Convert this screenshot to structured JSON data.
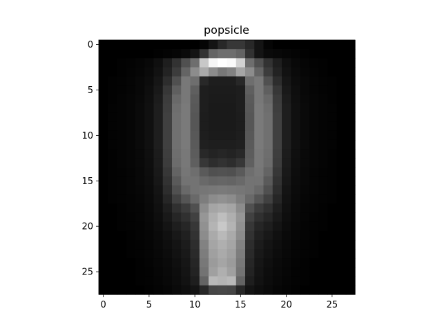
{
  "chart_data": {
    "type": "heatmap",
    "title": "popsicle",
    "xlabel": "",
    "ylabel": "",
    "colormap": "gray",
    "value_range": [
      0,
      255
    ],
    "grid": false,
    "rows": 28,
    "cols": 28,
    "xlim": [
      -0.5,
      27.5
    ],
    "ylim": [
      27.5,
      -0.5
    ],
    "x_ticks": [
      0,
      5,
      10,
      15,
      20,
      25
    ],
    "y_ticks": [
      0,
      5,
      10,
      15,
      20,
      25
    ],
    "values": [
      [
        0,
        0,
        0,
        0,
        0,
        0,
        0,
        0,
        0,
        0,
        0,
        5,
        20,
        40,
        55,
        55,
        40,
        20,
        5,
        0,
        0,
        0,
        0,
        0,
        0,
        0,
        0,
        0
      ],
      [
        0,
        0,
        0,
        0,
        0,
        0,
        2,
        4,
        6,
        10,
        20,
        50,
        100,
        110,
        110,
        100,
        50,
        20,
        10,
        8,
        6,
        4,
        2,
        0,
        0,
        0,
        0,
        0
      ],
      [
        0,
        0,
        2,
        3,
        5,
        8,
        15,
        30,
        50,
        80,
        110,
        200,
        245,
        255,
        250,
        210,
        110,
        80,
        50,
        30,
        15,
        8,
        5,
        3,
        2,
        0,
        0,
        0
      ],
      [
        0,
        0,
        2,
        4,
        6,
        10,
        18,
        35,
        60,
        100,
        140,
        170,
        140,
        120,
        130,
        165,
        140,
        100,
        60,
        35,
        18,
        10,
        6,
        4,
        2,
        0,
        0,
        0
      ],
      [
        0,
        2,
        3,
        5,
        8,
        12,
        22,
        45,
        80,
        120,
        110,
        40,
        30,
        30,
        30,
        40,
        110,
        120,
        80,
        45,
        22,
        12,
        8,
        5,
        3,
        2,
        0,
        0
      ],
      [
        0,
        2,
        3,
        5,
        8,
        14,
        25,
        55,
        95,
        120,
        95,
        30,
        28,
        28,
        28,
        30,
        95,
        120,
        95,
        55,
        25,
        14,
        8,
        5,
        3,
        2,
        0,
        0
      ],
      [
        0,
        2,
        4,
        6,
        9,
        15,
        28,
        60,
        105,
        120,
        90,
        30,
        27,
        27,
        27,
        30,
        90,
        120,
        105,
        60,
        28,
        15,
        9,
        6,
        4,
        2,
        0,
        0
      ],
      [
        0,
        3,
        4,
        6,
        10,
        16,
        30,
        62,
        110,
        122,
        88,
        30,
        26,
        26,
        26,
        30,
        88,
        122,
        110,
        62,
        30,
        16,
        10,
        6,
        4,
        3,
        0,
        0
      ],
      [
        0,
        3,
        4,
        6,
        10,
        16,
        30,
        64,
        112,
        122,
        86,
        29,
        26,
        26,
        26,
        29,
        86,
        122,
        112,
        64,
        30,
        16,
        10,
        6,
        4,
        3,
        0,
        0
      ],
      [
        0,
        3,
        4,
        6,
        10,
        16,
        30,
        64,
        112,
        122,
        86,
        29,
        26,
        26,
        26,
        29,
        86,
        122,
        112,
        64,
        30,
        16,
        10,
        6,
        4,
        3,
        0,
        0
      ],
      [
        0,
        3,
        4,
        6,
        10,
        16,
        30,
        64,
        112,
        122,
        88,
        30,
        27,
        27,
        27,
        30,
        88,
        122,
        112,
        64,
        30,
        16,
        10,
        6,
        4,
        3,
        0,
        0
      ],
      [
        0,
        3,
        4,
        6,
        10,
        16,
        30,
        64,
        112,
        122,
        90,
        32,
        30,
        30,
        30,
        32,
        90,
        122,
        112,
        64,
        30,
        16,
        10,
        6,
        4,
        3,
        0,
        0
      ],
      [
        0,
        2,
        4,
        6,
        9,
        15,
        28,
        62,
        110,
        120,
        92,
        40,
        35,
        38,
        35,
        40,
        92,
        120,
        110,
        62,
        28,
        15,
        9,
        6,
        4,
        2,
        0,
        0
      ],
      [
        0,
        2,
        4,
        6,
        9,
        14,
        27,
        60,
        108,
        120,
        95,
        55,
        45,
        50,
        45,
        55,
        95,
        120,
        108,
        60,
        27,
        14,
        9,
        6,
        4,
        2,
        0,
        0
      ],
      [
        0,
        2,
        3,
        5,
        8,
        13,
        25,
        55,
        100,
        118,
        110,
        90,
        80,
        82,
        80,
        90,
        110,
        118,
        100,
        55,
        25,
        13,
        8,
        5,
        3,
        2,
        0,
        0
      ],
      [
        0,
        2,
        3,
        5,
        8,
        12,
        23,
        50,
        90,
        115,
        115,
        105,
        100,
        102,
        100,
        105,
        115,
        115,
        90,
        50,
        23,
        12,
        8,
        5,
        3,
        2,
        0,
        0
      ],
      [
        0,
        2,
        3,
        5,
        7,
        11,
        20,
        45,
        80,
        105,
        115,
        118,
        120,
        122,
        120,
        118,
        115,
        105,
        80,
        45,
        20,
        11,
        7,
        5,
        3,
        2,
        0,
        0
      ],
      [
        0,
        2,
        3,
        4,
        6,
        10,
        18,
        38,
        65,
        85,
        105,
        125,
        140,
        145,
        140,
        125,
        105,
        85,
        65,
        38,
        18,
        10,
        6,
        4,
        3,
        2,
        0,
        0
      ],
      [
        0,
        0,
        2,
        4,
        5,
        9,
        16,
        30,
        48,
        60,
        80,
        140,
        165,
        170,
        165,
        140,
        80,
        60,
        48,
        30,
        16,
        9,
        5,
        4,
        2,
        0,
        0,
        0
      ],
      [
        0,
        0,
        2,
        3,
        5,
        8,
        14,
        25,
        38,
        48,
        65,
        150,
        175,
        190,
        175,
        150,
        65,
        48,
        38,
        25,
        14,
        8,
        5,
        3,
        2,
        0,
        0,
        0
      ],
      [
        0,
        0,
        2,
        3,
        4,
        7,
        12,
        20,
        30,
        38,
        55,
        145,
        180,
        200,
        180,
        145,
        55,
        38,
        30,
        20,
        12,
        7,
        4,
        3,
        2,
        0,
        0,
        0
      ],
      [
        0,
        0,
        0,
        2,
        4,
        6,
        10,
        16,
        24,
        32,
        50,
        140,
        170,
        185,
        170,
        140,
        50,
        32,
        24,
        16,
        10,
        6,
        4,
        2,
        0,
        0,
        0,
        0
      ],
      [
        0,
        0,
        0,
        2,
        3,
        5,
        9,
        14,
        20,
        28,
        45,
        130,
        165,
        175,
        165,
        130,
        45,
        28,
        20,
        14,
        9,
        5,
        3,
        2,
        0,
        0,
        0,
        0
      ],
      [
        0,
        0,
        0,
        2,
        3,
        5,
        8,
        12,
        18,
        25,
        42,
        125,
        160,
        170,
        160,
        125,
        42,
        25,
        18,
        12,
        8,
        5,
        3,
        2,
        0,
        0,
        0,
        0
      ],
      [
        0,
        0,
        0,
        0,
        2,
        4,
        7,
        10,
        15,
        22,
        38,
        120,
        155,
        165,
        155,
        120,
        38,
        22,
        15,
        10,
        7,
        4,
        2,
        0,
        0,
        0,
        0,
        0
      ],
      [
        0,
        0,
        0,
        0,
        2,
        3,
        6,
        9,
        13,
        20,
        35,
        115,
        160,
        175,
        160,
        115,
        35,
        20,
        13,
        9,
        6,
        3,
        2,
        0,
        0,
        0,
        0,
        0
      ],
      [
        0,
        0,
        0,
        0,
        2,
        3,
        5,
        8,
        12,
        18,
        30,
        100,
        185,
        180,
        185,
        100,
        30,
        18,
        12,
        8,
        5,
        3,
        2,
        0,
        0,
        0,
        0,
        0
      ],
      [
        0,
        0,
        0,
        0,
        0,
        2,
        4,
        6,
        10,
        14,
        20,
        40,
        70,
        72,
        70,
        40,
        20,
        14,
        10,
        6,
        4,
        2,
        0,
        0,
        0,
        0,
        0,
        0
      ]
    ]
  }
}
